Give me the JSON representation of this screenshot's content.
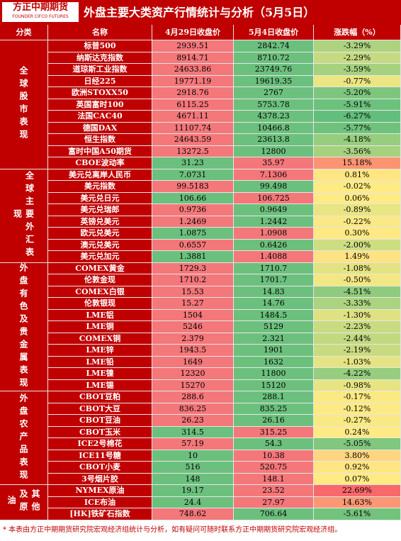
{
  "header": {
    "logo": "方正中期期货",
    "logo_en": "FOUNDER CIFCO FUTURES",
    "title": "外盘主要大类资产行情统计与分析（5月5日）"
  },
  "table": {
    "columns": [
      "分类",
      "名称",
      "4月29日收盘价",
      "5月4日收盘价",
      "涨跌幅（%）"
    ],
    "groups": [
      {
        "label": "全球股市表现",
        "rows": [
          [
            "标普500",
            "2939.51",
            "2842.74",
            "-3.29%"
          ],
          [
            "纳斯达克指数",
            "8914.71",
            "8710.72",
            "-2.29%"
          ],
          [
            "道琼斯工业指数",
            "24633.86",
            "23749.76",
            "-3.59%"
          ],
          [
            "日经225",
            "19771.19",
            "19619.35",
            "-0.77%"
          ],
          [
            "欧洲STOXX50",
            "2918.76",
            "2767",
            "-5.20%"
          ],
          [
            "英国富时100",
            "6115.25",
            "5753.78",
            "-5.91%"
          ],
          [
            "法国CAC40",
            "4671.11",
            "4378.23",
            "-6.27%"
          ],
          [
            "德国DAX",
            "11107.74",
            "10466.8",
            "-5.77%"
          ],
          [
            "恒生指数",
            "24643.59",
            "23613.8",
            "-4.18%"
          ],
          [
            "富时中国A50期货",
            "13272.5",
            "12800",
            "-3.56%"
          ],
          [
            "CBOE波动率",
            "31.23",
            "35.97",
            "15.18%"
          ]
        ]
      },
      {
        "label": "全球主要外汇表现",
        "rows": [
          [
            "美元兑离岸人民币",
            "7.0731",
            "7.1306",
            "0.81%"
          ],
          [
            "美元指数",
            "99.5183",
            "99.498",
            "-0.02%"
          ],
          [
            "美元兑日元",
            "106.66",
            "106.725",
            "0.06%"
          ],
          [
            "美元兑瑞郎",
            "0.9736",
            "0.9649",
            "-0.89%"
          ],
          [
            "英镑兑美元",
            "1.2469",
            "1.2442",
            "-0.22%"
          ],
          [
            "欧元兑美元",
            "1.0875",
            "1.0908",
            "0.30%"
          ],
          [
            "澳元兑美元",
            "0.6557",
            "0.6426",
            "-2.00%"
          ],
          [
            "美元兑加元",
            "1.3881",
            "1.4088",
            "1.49%"
          ]
        ]
      },
      {
        "label": "外盘有色及贵金属表现",
        "rows": [
          [
            "COMEX黄金",
            "1729.3",
            "1710.7",
            "-1.08%"
          ],
          [
            "伦敦金现",
            "1710.2",
            "1701.7",
            "-0.50%"
          ],
          [
            "COMEX白银",
            "15.53",
            "14.83",
            "-4.51%"
          ],
          [
            "伦敦银现",
            "15.27",
            "14.76",
            "-3.33%"
          ],
          [
            "LME铝",
            "1504",
            "1484.5",
            "-1.30%"
          ],
          [
            "LME铜",
            "5246",
            "5129",
            "-2.23%"
          ],
          [
            "COMEX铜",
            "2.379",
            "2.321",
            "-2.44%"
          ],
          [
            "LME锌",
            "1943.5",
            "1901",
            "-2.19%"
          ],
          [
            "LME铅",
            "1649",
            "1632",
            "-1.03%"
          ],
          [
            "LME镍",
            "12320",
            "11800",
            "-4.22%"
          ],
          [
            "LME锡",
            "15270",
            "15120",
            "-0.98%"
          ]
        ]
      },
      {
        "label": "外盘农产品表现",
        "rows": [
          [
            "CBOT豆粕",
            "288.6",
            "288.1",
            "-0.17%"
          ],
          [
            "CBOT大豆",
            "836.25",
            "835.25",
            "-0.12%"
          ],
          [
            "CBOT豆油",
            "26.23",
            "26.16",
            "-0.27%"
          ],
          [
            "CBOT玉米",
            "314.5",
            "315.25",
            "0.24%"
          ],
          [
            "ICE2号棉花",
            "57.19",
            "54.3",
            "-5.05%"
          ],
          [
            "ICE11号糖",
            "10",
            "10.38",
            "3.80%"
          ],
          [
            "CBOT小麦",
            "516",
            "520.75",
            "0.92%"
          ],
          [
            "3号烟片胶",
            "148",
            "148.1",
            "0.07%"
          ]
        ]
      },
      {
        "label": "其他及原油",
        "rows": [
          [
            "NYMEX原油",
            "19.17",
            "23.52",
            "22.69%"
          ],
          [
            "ICE布油",
            "24.4",
            "27.97",
            "14.63%"
          ],
          [
            "[HK]铁矿石指数",
            "748.62",
            "706.64",
            "-5.61%"
          ]
        ]
      }
    ]
  },
  "note": "* 本表由方正中期期货研究院宏观经济组统计与分析，如有疑问可随时联系方正中期期货研究院宏观经济组。"
}
